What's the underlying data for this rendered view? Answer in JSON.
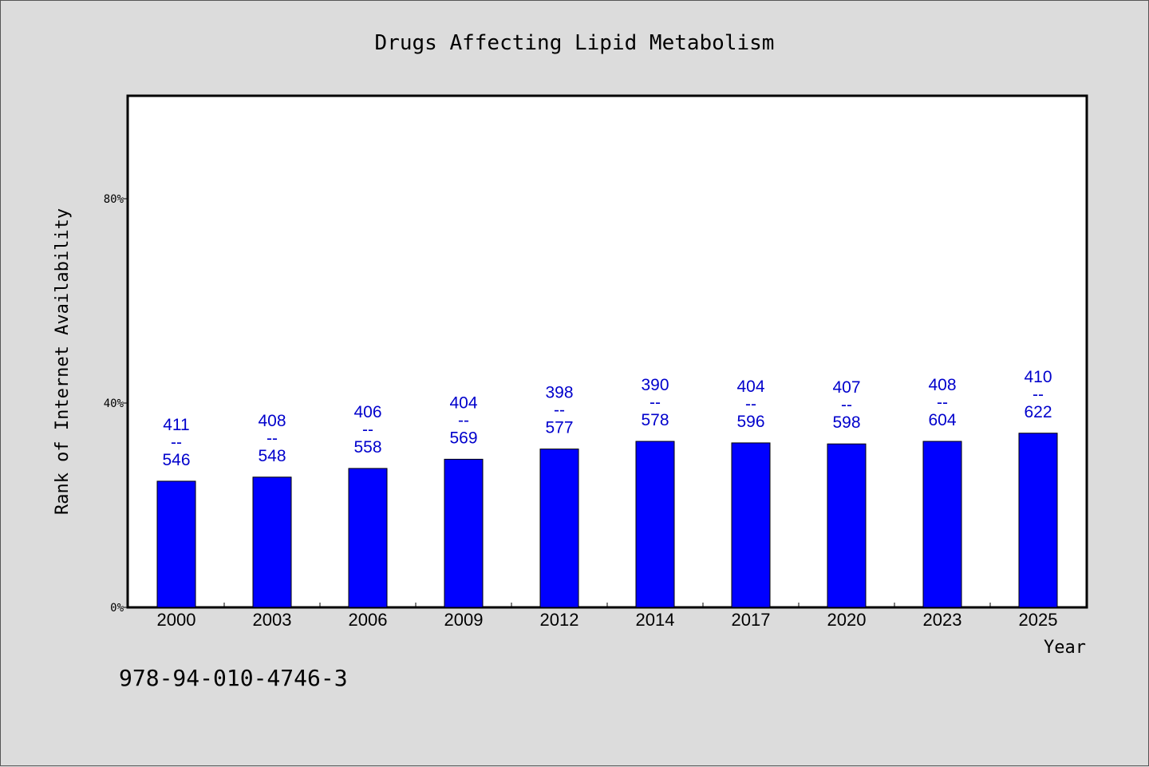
{
  "chart_data": {
    "type": "bar",
    "title": "Drugs Affecting Lipid Metabolism",
    "xlabel": "Year",
    "ylabel": "Rank of Internet Availability",
    "ylim": [
      0,
      1
    ],
    "y_ticks": [
      {
        "value": 0,
        "label": "0%"
      },
      {
        "value": 0.4,
        "label": "40%"
      },
      {
        "value": 0.8,
        "label": "80%"
      }
    ],
    "categories": [
      "2000",
      "2003",
      "2006",
      "2009",
      "2012",
      "2014",
      "2017",
      "2020",
      "2023",
      "2025"
    ],
    "values": [
      0.247,
      0.255,
      0.272,
      0.29,
      0.31,
      0.325,
      0.322,
      0.32,
      0.325,
      0.341
    ],
    "data_labels": [
      {
        "top": "411",
        "sep": "--",
        "bottom": "546"
      },
      {
        "top": "408",
        "sep": "--",
        "bottom": "548"
      },
      {
        "top": "406",
        "sep": "--",
        "bottom": "558"
      },
      {
        "top": "404",
        "sep": "--",
        "bottom": "569"
      },
      {
        "top": "398",
        "sep": "--",
        "bottom": "577"
      },
      {
        "top": "390",
        "sep": "--",
        "bottom": "578"
      },
      {
        "top": "404",
        "sep": "--",
        "bottom": "596"
      },
      {
        "top": "407",
        "sep": "--",
        "bottom": "598"
      },
      {
        "top": "408",
        "sep": "--",
        "bottom": "604"
      },
      {
        "top": "410",
        "sep": "--",
        "bottom": "622"
      }
    ],
    "colors": {
      "bar": "#0000ff",
      "label": "#0000cc",
      "background": "#dcdcdc",
      "plot_area": "#ffffff"
    },
    "grid": false,
    "legend": "none"
  },
  "footer": {
    "isbn": "978-94-010-4746-3"
  }
}
